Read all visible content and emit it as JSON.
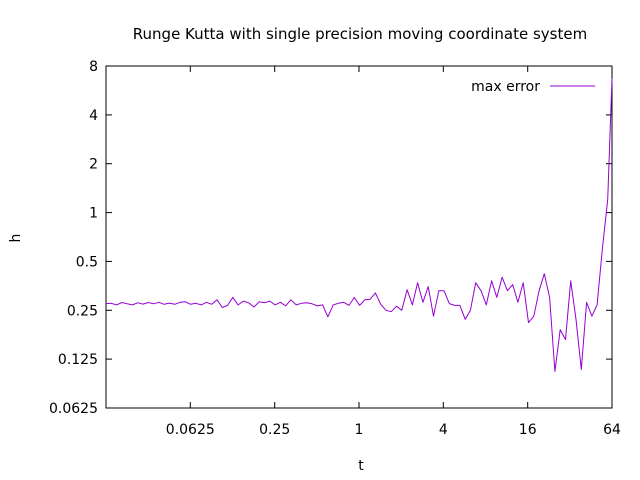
{
  "chart_data": {
    "type": "line",
    "title": "Runge Kutta with single precision moving coordinate system",
    "xlabel": "t",
    "ylabel": "h",
    "xscale": "log2",
    "yscale": "log2",
    "xlim": [
      0.015625,
      64
    ],
    "ylim": [
      0.0625,
      8
    ],
    "xticks": [
      "0.0625",
      "0.25",
      "1",
      "4",
      "16",
      "64"
    ],
    "yticks": [
      "0.0625",
      "0.125",
      "0.25",
      "0.5",
      "1",
      "2",
      "4",
      "8"
    ],
    "grid": false,
    "legend_position": "top-right",
    "series_color": "#9400d3",
    "series": [
      {
        "name": "max error",
        "x": [
          0.0156,
          0.017,
          0.0186,
          0.0203,
          0.0221,
          0.0241,
          0.0263,
          0.0287,
          0.0313,
          0.0342,
          0.0373,
          0.0406,
          0.0443,
          0.0484,
          0.0527,
          0.0575,
          0.0628,
          0.0685,
          0.0747,
          0.0814,
          0.0888,
          0.0969,
          0.1057,
          0.1153,
          0.1257,
          0.1371,
          0.1495,
          0.1631,
          0.1779,
          0.194,
          0.2116,
          0.2308,
          0.2517,
          0.2745,
          0.2994,
          0.3266,
          0.3562,
          0.3885,
          0.4237,
          0.4621,
          0.504,
          0.5497,
          0.5995,
          0.6539,
          0.7132,
          0.7779,
          0.8484,
          0.9253,
          1.0092,
          1.1007,
          1.2005,
          1.3093,
          1.4281,
          1.5575,
          1.6988,
          1.8528,
          2.0208,
          2.204,
          2.4038,
          2.6218,
          2.8595,
          3.1188,
          3.4015,
          3.7099,
          4.0463,
          4.4132,
          4.8133,
          5.2497,
          5.7257,
          6.2448,
          6.811,
          7.4285,
          8.1021,
          8.8366,
          9.6378,
          10.512,
          11.465,
          12.504,
          13.638,
          14.874,
          16.223,
          17.694,
          19.298,
          21.048,
          22.956,
          25.038,
          27.308,
          29.784,
          32.484,
          35.429,
          38.641,
          42.145,
          45.966,
          50.133,
          54.679,
          59.636,
          64.0
        ],
        "y": [
          0.275,
          0.276,
          0.27,
          0.279,
          0.274,
          0.27,
          0.278,
          0.273,
          0.279,
          0.274,
          0.28,
          0.272,
          0.277,
          0.272,
          0.28,
          0.282,
          0.272,
          0.276,
          0.27,
          0.28,
          0.272,
          0.29,
          0.26,
          0.268,
          0.3,
          0.27,
          0.285,
          0.278,
          0.262,
          0.282,
          0.278,
          0.285,
          0.27,
          0.28,
          0.266,
          0.29,
          0.27,
          0.276,
          0.278,
          0.274,
          0.266,
          0.27,
          0.228,
          0.27,
          0.276,
          0.28,
          0.268,
          0.3,
          0.268,
          0.29,
          0.292,
          0.32,
          0.272,
          0.25,
          0.245,
          0.265,
          0.25,
          0.335,
          0.27,
          0.37,
          0.28,
          0.35,
          0.23,
          0.33,
          0.33,
          0.275,
          0.268,
          0.268,
          0.22,
          0.25,
          0.37,
          0.33,
          0.27,
          0.38,
          0.3,
          0.4,
          0.33,
          0.36,
          0.28,
          0.37,
          0.21,
          0.23,
          0.33,
          0.42,
          0.3,
          0.105,
          0.19,
          0.165,
          0.38,
          0.22,
          0.108,
          0.28,
          0.23,
          0.27,
          0.6,
          1.2,
          6.7
        ]
      }
    ]
  }
}
